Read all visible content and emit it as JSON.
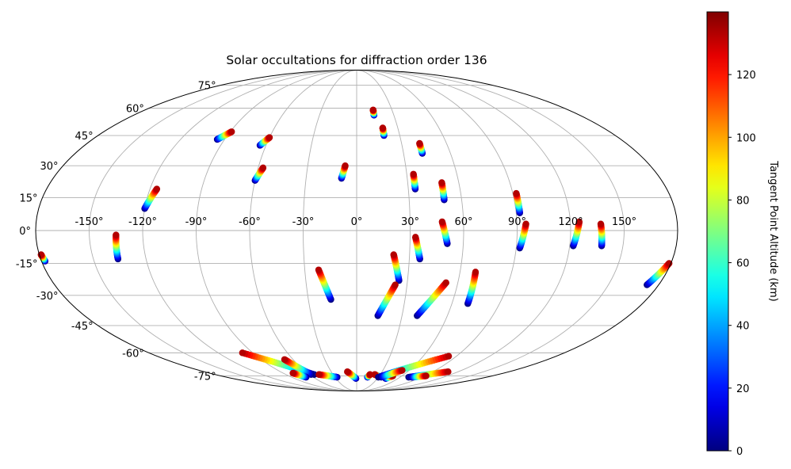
{
  "chart_data": {
    "type": "scatter",
    "projection": "mollweide",
    "title": "Solar occultations for diffraction order 136",
    "grid": true,
    "x_tick_labels": [
      "-150°",
      "-120°",
      "-90°",
      "-60°",
      "-30°",
      "0°",
      "30°",
      "60°",
      "90°",
      "120°",
      "150°"
    ],
    "x_ticks": [
      -150,
      -120,
      -90,
      -60,
      -30,
      0,
      30,
      60,
      90,
      120,
      150
    ],
    "y_tick_labels": [
      "-75°",
      "-60°",
      "-45°",
      "-30°",
      "-15°",
      "0°",
      "15°",
      "30°",
      "45°",
      "60°",
      "75°"
    ],
    "y_ticks": [
      -75,
      -60,
      -45,
      -30,
      -15,
      0,
      15,
      30,
      45,
      60,
      75
    ],
    "colorbar": {
      "label": "Tangent Point Altitude (km)",
      "range": [
        0,
        140
      ],
      "tick_labels": [
        "0",
        "20",
        "40",
        "60",
        "80",
        "100",
        "120"
      ],
      "ticks": [
        0,
        20,
        40,
        60,
        80,
        100,
        120
      ],
      "colormap": "jet"
    },
    "tracks": [
      {
        "lon0": -95,
        "lat0": 43,
        "lon1": -89,
        "lat1": 47
      },
      {
        "lon0": -64,
        "lat0": 40,
        "lon1": -60,
        "lat1": 44
      },
      {
        "lon0": -60,
        "lat0": 23,
        "lon1": -57,
        "lat1": 29
      },
      {
        "lon0": -120,
        "lat0": 10,
        "lon1": -116,
        "lat1": 19
      },
      {
        "lon0": -9,
        "lat0": 24,
        "lon1": -7,
        "lat1": 30
      },
      {
        "lon0": 14,
        "lat0": 56,
        "lon1": 14,
        "lat1": 59
      },
      {
        "lon0": 19,
        "lat0": 45,
        "lon1": 19,
        "lat1": 49
      },
      {
        "lon0": 42,
        "lat0": 36,
        "lon1": 42,
        "lat1": 41
      },
      {
        "lon0": 34,
        "lat0": 19,
        "lon1": 34,
        "lat1": 26
      },
      {
        "lon0": 50,
        "lat0": 14,
        "lon1": 50,
        "lat1": 22
      },
      {
        "lon0": 92,
        "lat0": 8,
        "lon1": 92,
        "lat1": 17
      },
      {
        "lon0": 92,
        "lat0": -8,
        "lon1": 95,
        "lat1": 3
      },
      {
        "lon0": 122,
        "lat0": -7,
        "lon1": 125,
        "lat1": 4
      },
      {
        "lon0": 138,
        "lat0": -7,
        "lon1": 137,
        "lat1": 3
      },
      {
        "lon0": 51,
        "lat0": -6,
        "lon1": 48,
        "lat1": 4
      },
      {
        "lon0": -136,
        "lat0": -13,
        "lon1": -135,
        "lat1": -2
      },
      {
        "lon0": -178,
        "lat0": -14,
        "lon1": -179,
        "lat1": -11
      },
      {
        "lon0": 173,
        "lat0": -25,
        "lon1": 179,
        "lat1": -15
      },
      {
        "lon0": 36,
        "lat0": -13,
        "lon1": 33,
        "lat1": -3
      },
      {
        "lon0": 25,
        "lat0": -23,
        "lon1": 21,
        "lat1": -11
      },
      {
        "lon0": -16,
        "lat0": -32,
        "lon1": -22,
        "lat1": -18
      },
      {
        "lon0": 14,
        "lat0": -40,
        "lon1": 23,
        "lat1": -25
      },
      {
        "lon0": 40,
        "lat0": -40,
        "lon1": 53,
        "lat1": -24
      },
      {
        "lon0": 70,
        "lat0": -34,
        "lon1": 69,
        "lat1": -19
      },
      {
        "lon0": -54,
        "lat0": -74,
        "lon1": -99,
        "lat1": -60
      },
      {
        "lon0": -58,
        "lat0": -74,
        "lon1": -68,
        "lat1": -64
      },
      {
        "lon0": -70,
        "lat0": -76,
        "lon1": -78,
        "lat1": -73
      },
      {
        "lon0": -27,
        "lat0": -76,
        "lon1": -48,
        "lat1": -74
      },
      {
        "lon0": -1,
        "lat0": -77,
        "lon1": -11,
        "lat1": -72
      },
      {
        "lon0": 15,
        "lat0": -76,
        "lon1": 17,
        "lat1": -74
      },
      {
        "lon0": 28,
        "lat0": -75,
        "lon1": 23,
        "lat1": -74
      },
      {
        "lon0": 42,
        "lat0": -77,
        "lon1": 48,
        "lat1": -75
      },
      {
        "lon0": 30,
        "lat0": -76,
        "lon1": 83,
        "lat1": -62
      },
      {
        "lon0": 34,
        "lat0": -76,
        "lon1": 52,
        "lat1": -71
      },
      {
        "lon0": 72,
        "lat0": -76,
        "lon1": 108,
        "lat1": -72
      },
      {
        "lon0": 76,
        "lat0": -76,
        "lon1": 92,
        "lat1": -75
      }
    ]
  }
}
